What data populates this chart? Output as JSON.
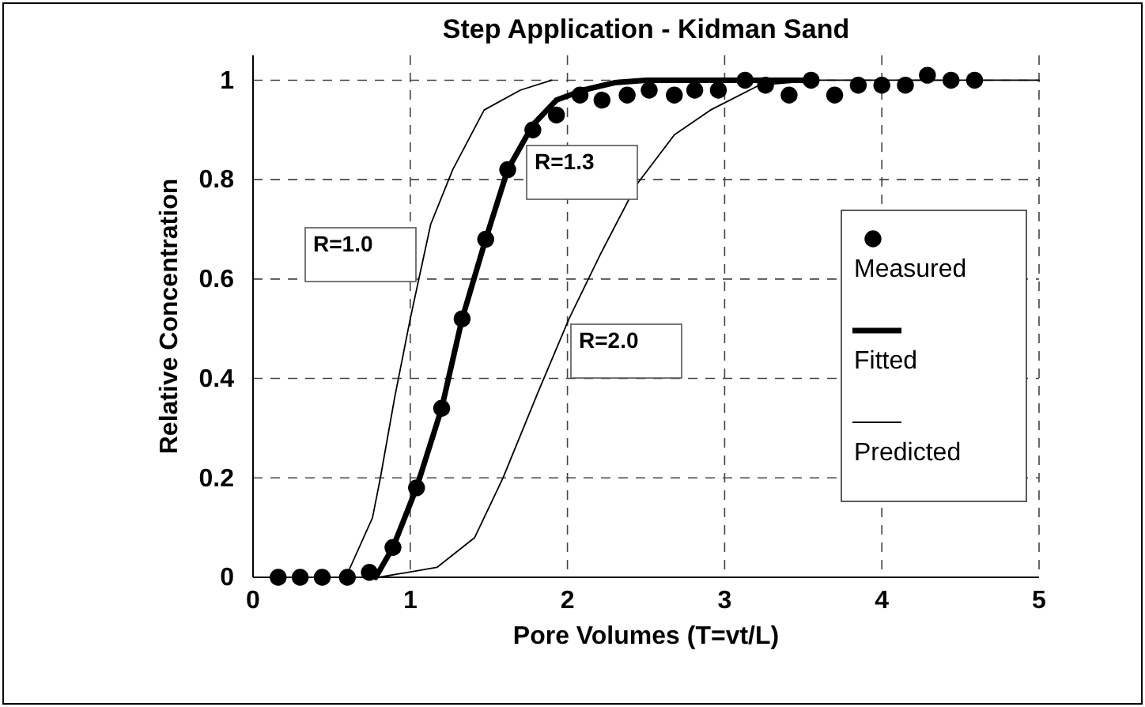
{
  "chart_data": {
    "type": "line",
    "title": "Step Application - Kidman Sand",
    "xlabel": "Pore Volumes (T=vt/L)",
    "ylabel": "Relative Concentration",
    "xlim": [
      0,
      5
    ],
    "xticks": [
      0,
      1,
      2,
      3,
      4,
      5
    ],
    "ylim": [
      0,
      1.05
    ],
    "yticks": [
      0,
      0.2,
      0.4,
      0.6,
      0.8,
      1
    ],
    "grid": true,
    "legend": "right",
    "series": [
      {
        "name": "Measured",
        "type": "scatter",
        "marker": "circle",
        "color": "#000000",
        "x": [
          0.16,
          0.3,
          0.44,
          0.6,
          0.74,
          0.89,
          1.04,
          1.2,
          1.33,
          1.48,
          1.62,
          1.78,
          1.93,
          2.08,
          2.22,
          2.38,
          2.52,
          2.68,
          2.81,
          2.96,
          3.13,
          3.26,
          3.41,
          3.55,
          3.7,
          3.85,
          4.0,
          4.15,
          4.29,
          4.44,
          4.59
        ],
        "values": [
          0,
          0,
          0,
          0,
          0.01,
          0.06,
          0.18,
          0.34,
          0.52,
          0.68,
          0.82,
          0.9,
          0.93,
          0.97,
          0.96,
          0.97,
          0.98,
          0.97,
          0.98,
          0.98,
          1.0,
          0.99,
          0.97,
          1.0,
          0.97,
          0.99,
          0.99,
          0.99,
          1.01,
          1.0,
          1.0
        ]
      },
      {
        "name": "Fitted",
        "color": "#000000",
        "x": [
          0.78,
          0.89,
          1.04,
          1.2,
          1.33,
          1.48,
          1.62,
          1.78,
          1.93,
          2.1,
          2.3,
          2.5,
          3.0,
          3.55
        ],
        "values": [
          0,
          0.06,
          0.18,
          0.34,
          0.52,
          0.68,
          0.82,
          0.91,
          0.96,
          0.98,
          0.995,
          1.0,
          1.0,
          1.0
        ]
      },
      {
        "name": "Predicted",
        "color": "#000000",
        "x": [
          0.59,
          0.76,
          0.81,
          0.9,
          1.0,
          1.13,
          1.27,
          1.47,
          1.7,
          1.9
        ],
        "values": [
          0,
          0.12,
          0.2,
          0.36,
          0.52,
          0.71,
          0.82,
          0.94,
          0.98,
          1.0
        ]
      },
      {
        "color": "#000000",
        "x": [
          0.8,
          1.17,
          1.41,
          1.59,
          1.81,
          2.01,
          2.21,
          2.44,
          2.68,
          2.91,
          3.22,
          3.6,
          5.0
        ],
        "values": [
          0,
          0.02,
          0.08,
          0.2,
          0.37,
          0.52,
          0.65,
          0.79,
          0.89,
          0.94,
          0.99,
          1.0,
          1.0
        ]
      }
    ],
    "annotations": [
      "R=1.0",
      "R=1.3",
      "R=2.0"
    ]
  }
}
